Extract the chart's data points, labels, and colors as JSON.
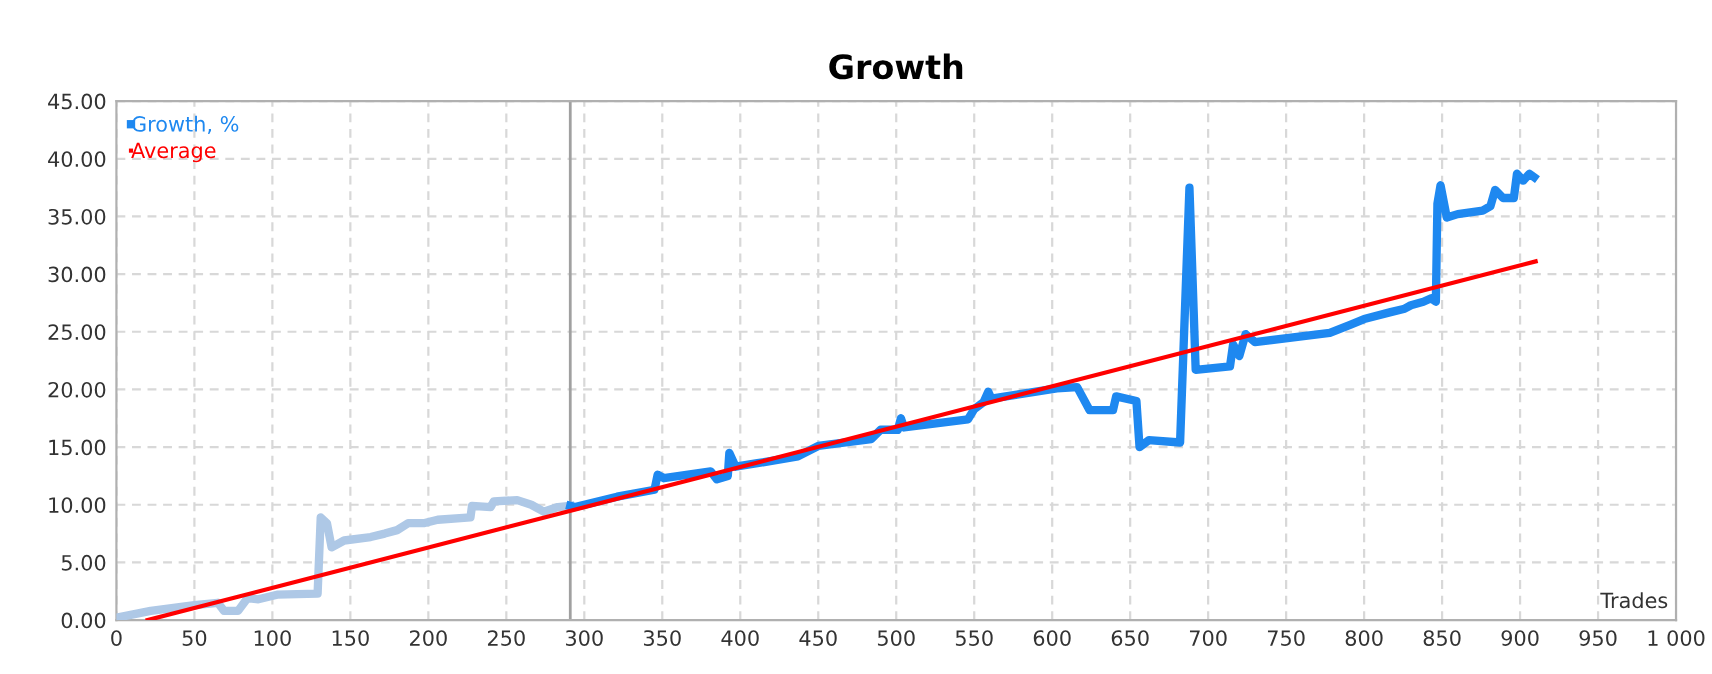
{
  "chart_data": {
    "type": "line",
    "title": "Growth",
    "xlabel": "Trades",
    "xlim": [
      0,
      1000
    ],
    "ylim": [
      0,
      45
    ],
    "xticks": [
      0,
      50,
      100,
      150,
      200,
      250,
      300,
      350,
      400,
      450,
      500,
      550,
      600,
      650,
      700,
      750,
      800,
      850,
      900,
      950,
      {
        "value": 1000,
        "label": "1 000"
      }
    ],
    "yticks": [
      {
        "value": 0,
        "label": "0.00"
      },
      {
        "value": 5,
        "label": "5.00"
      },
      {
        "value": 10,
        "label": "10.00"
      },
      {
        "value": 15,
        "label": "15.00"
      },
      {
        "value": 20,
        "label": "20.00"
      },
      {
        "value": 25,
        "label": "25.00"
      },
      {
        "value": 30,
        "label": "30.00"
      },
      {
        "value": 35,
        "label": "35.00"
      },
      {
        "value": 40,
        "label": "40.00"
      },
      {
        "value": 45,
        "label": "45.00"
      }
    ],
    "grid": true,
    "legend": "top left",
    "line_style": "solid",
    "marker": "none",
    "ref_lines": [
      {
        "axis": "x",
        "value": 291,
        "color": "#a0a0a0"
      }
    ],
    "series": [
      {
        "color": "#aec8e6",
        "x": [
          0,
          22,
          50,
          65,
          69,
          78,
          84,
          91,
          103,
          129,
          131,
          135,
          138,
          146,
          163,
          172,
          180,
          187,
          197,
          206,
          227,
          228,
          240,
          242,
          257,
          266,
          274,
          283,
          291
        ],
        "values": [
          0.2,
          0.8,
          1.3,
          1.5,
          0.8,
          0.8,
          1.9,
          1.8,
          2.2,
          2.3,
          8.9,
          8.4,
          6.3,
          6.9,
          7.2,
          7.5,
          7.8,
          8.4,
          8.4,
          8.7,
          8.9,
          9.9,
          9.8,
          10.3,
          10.4,
          10.0,
          9.4,
          9.8,
          9.9
        ]
      },
      {
        "name": "Growth, %",
        "color": "#1e88f0",
        "x": [
          291,
          294,
          321,
          345,
          347,
          351,
          381,
          385,
          392,
          393,
          397,
          411,
          437,
          450,
          484,
          490,
          501,
          503,
          505,
          546,
          550,
          556,
          559,
          561,
          603,
          616,
          624,
          639,
          641,
          654,
          656,
          662,
          682,
          688,
          692,
          714,
          716,
          720,
          724,
          730,
          778,
          791,
          800,
          817,
          826,
          830,
          838,
          843,
          846,
          847,
          849,
          853,
          860,
          876,
          881,
          884,
          889,
          896,
          898,
          902,
          906,
          909
        ],
        "values": [
          9.9,
          9.8,
          10.7,
          11.3,
          12.6,
          12.3,
          12.9,
          12.2,
          12.5,
          14.5,
          13.3,
          13.6,
          14.2,
          15.1,
          15.7,
          16.5,
          16.5,
          17.5,
          16.7,
          17.4,
          18.3,
          18.9,
          19.8,
          19.2,
          20.1,
          20.2,
          18.2,
          18.2,
          19.4,
          19.0,
          15.0,
          15.6,
          15.4,
          37.5,
          21.7,
          22.0,
          23.9,
          22.9,
          24.8,
          24.1,
          24.9,
          25.6,
          26.1,
          26.7,
          27.0,
          27.3,
          27.6,
          27.9,
          27.6,
          36.1,
          37.7,
          34.9,
          35.2,
          35.5,
          35.9,
          37.3,
          36.6,
          36.6,
          38.7,
          38.1,
          38.7,
          38.4
        ]
      },
      {
        "name": "Average",
        "color": "#ff0000",
        "x": [
          20,
          910
        ],
        "values": [
          0,
          31.1
        ]
      }
    ]
  }
}
